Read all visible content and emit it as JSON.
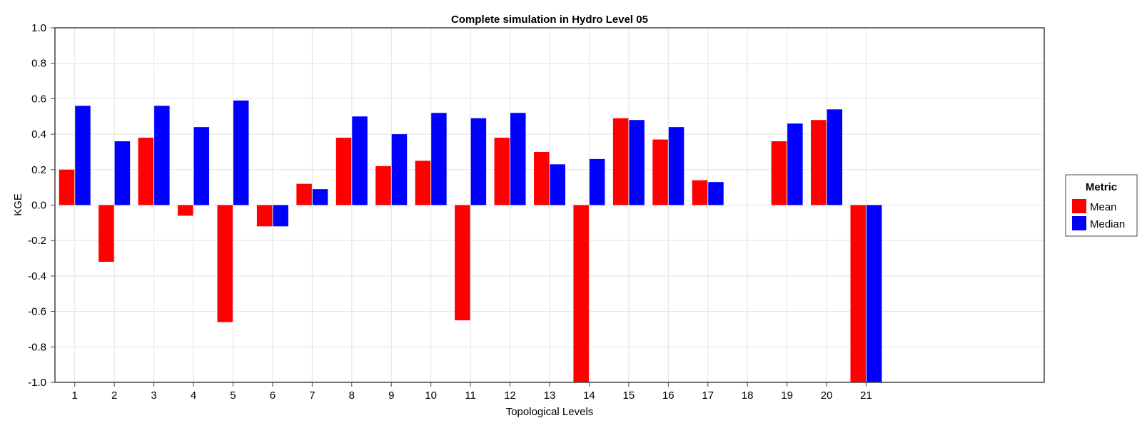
{
  "chart_data": {
    "type": "bar",
    "title": "Complete simulation in Hydro Level 05",
    "xlabel": "Topological Levels",
    "ylabel": "KGE",
    "ylim": [
      -1.0,
      1.0
    ],
    "yticks": [
      "-1.0",
      "-0.8",
      "-0.6",
      "-0.4",
      "-0.2",
      "0.0",
      "0.2",
      "0.4",
      "0.6",
      "0.8",
      "1.0"
    ],
    "categories": [
      "1",
      "2",
      "3",
      "4",
      "5",
      "6",
      "7",
      "8",
      "9",
      "10",
      "11",
      "12",
      "13",
      "14",
      "15",
      "16",
      "17",
      "18",
      "19",
      "20",
      "21"
    ],
    "x_slots": 25,
    "grid": true,
    "legend": {
      "title": "Metric",
      "placement": "right"
    },
    "series": [
      {
        "name": "Mean",
        "color": "#ff0000",
        "values": [
          0.2,
          -0.32,
          0.38,
          -0.06,
          -0.66,
          -0.12,
          0.12,
          0.38,
          0.22,
          0.25,
          -0.65,
          0.38,
          0.3,
          -1.0,
          0.49,
          0.37,
          0.14,
          null,
          0.36,
          0.48,
          -1.0
        ]
      },
      {
        "name": "Median",
        "color": "#0000ff",
        "values": [
          0.56,
          0.36,
          0.56,
          0.44,
          0.59,
          -0.12,
          0.09,
          0.5,
          0.4,
          0.52,
          0.49,
          0.52,
          0.23,
          0.26,
          0.48,
          0.44,
          0.13,
          null,
          0.46,
          0.54,
          -1.0
        ]
      }
    ]
  }
}
